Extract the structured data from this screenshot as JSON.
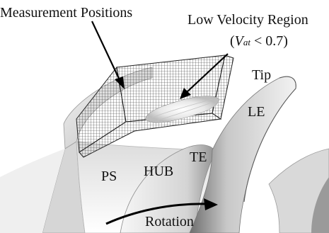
{
  "labels": {
    "measurement_positions": "Measurement Positions",
    "low_velocity_line1": "Low Velocity Region",
    "low_velocity_open": "(",
    "low_velocity_var": "V",
    "low_velocity_sub": "at",
    "low_velocity_rest": " < 0.7)",
    "tip": "Tip",
    "le": "LE",
    "ps": "PS",
    "hub": "HUB",
    "te": "TE",
    "rotation": "Rotation"
  },
  "colors": {
    "blade_light": "#e8e8e8",
    "blade_dark": "#8a8a8a",
    "mesh": "#333333",
    "arrow": "#000000"
  }
}
